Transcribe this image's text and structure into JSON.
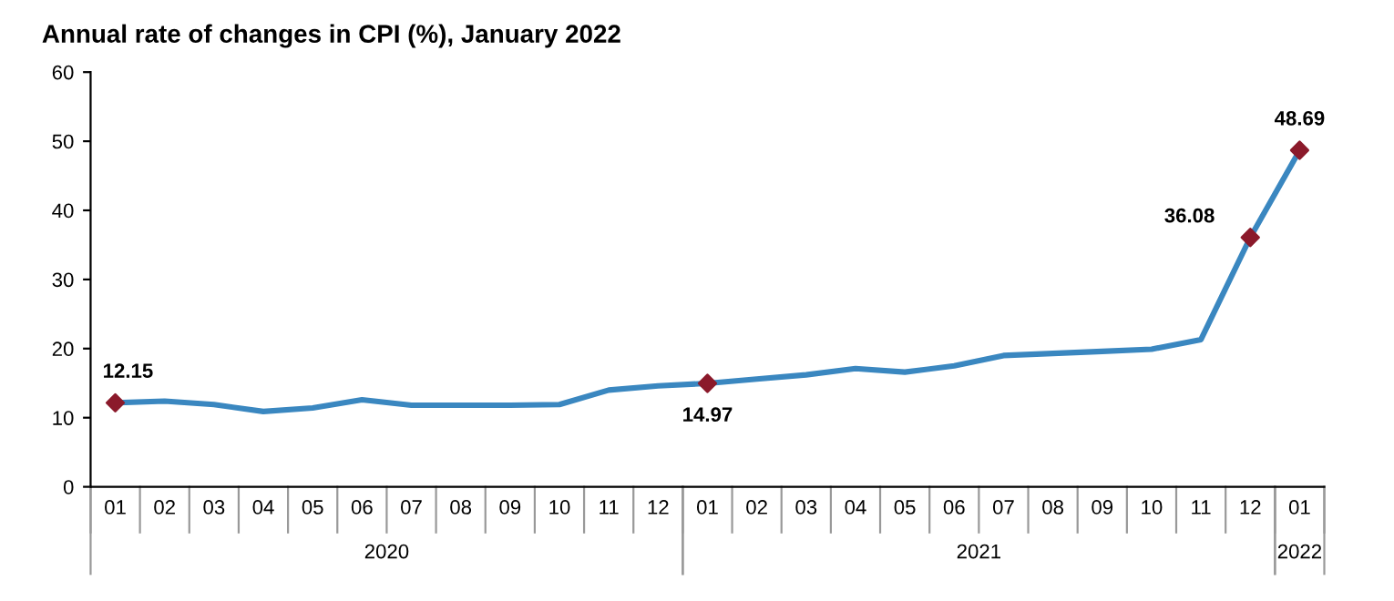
{
  "chart_data": {
    "type": "line",
    "title": "Annual rate of changes in CPI (%), January 2022",
    "categories": [
      "01",
      "02",
      "03",
      "04",
      "05",
      "06",
      "07",
      "08",
      "09",
      "10",
      "11",
      "12",
      "01",
      "02",
      "03",
      "04",
      "05",
      "06",
      "07",
      "08",
      "09",
      "10",
      "11",
      "12",
      "01"
    ],
    "series": [
      {
        "color": "#3a87c0",
        "values": [
          12.15,
          12.4,
          11.9,
          10.9,
          11.4,
          12.6,
          11.8,
          11.8,
          11.8,
          11.9,
          14.0,
          14.6,
          14.97,
          15.6,
          16.2,
          17.1,
          16.6,
          17.5,
          19.0,
          19.3,
          19.6,
          19.9,
          21.3,
          36.08,
          48.69
        ]
      },
      {
        "type": "scatter",
        "color": "#8b1a2b",
        "marker": "diamond",
        "values": [
          12.15,
          null,
          null,
          null,
          null,
          null,
          null,
          null,
          null,
          null,
          null,
          null,
          14.97,
          null,
          null,
          null,
          null,
          null,
          null,
          null,
          null,
          null,
          null,
          36.08,
          48.69
        ],
        "value_labels": [
          "12.15",
          null,
          null,
          null,
          null,
          null,
          null,
          null,
          null,
          null,
          null,
          null,
          "14.97",
          null,
          null,
          null,
          null,
          null,
          null,
          null,
          null,
          null,
          null,
          "36.08",
          "48.69"
        ]
      }
    ],
    "annotations": [
      "2020",
      "2021",
      "2022"
    ],
    "ylim": [
      0,
      60
    ],
    "yticks": [
      0,
      10,
      20,
      30,
      40,
      50,
      60
    ],
    "grid": false,
    "legend": false
  }
}
